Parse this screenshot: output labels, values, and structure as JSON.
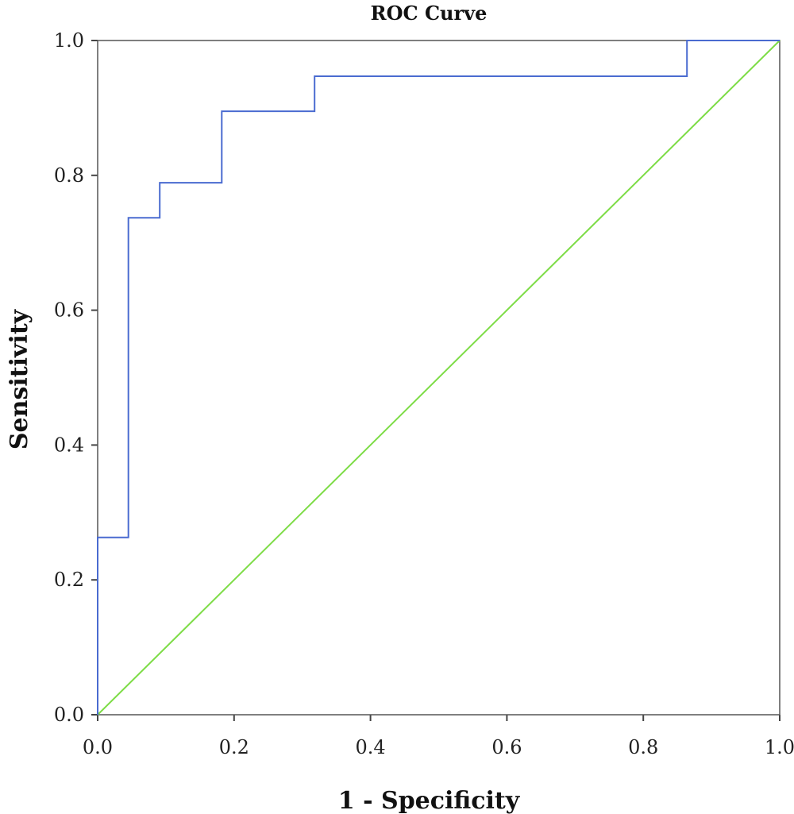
{
  "chart_data": {
    "type": "line",
    "title": "ROC Curve",
    "xlabel": "1 - Specificity",
    "ylabel": "Sensitivity",
    "xlim": [
      0.0,
      1.0
    ],
    "ylim": [
      0.0,
      1.0
    ],
    "grid": false,
    "x_ticks": [
      "0.0",
      "0.2",
      "0.4",
      "0.6",
      "0.8",
      "1.0"
    ],
    "y_ticks": [
      "0.0",
      "0.2",
      "0.4",
      "0.6",
      "0.8",
      "1.0"
    ],
    "series": [
      {
        "color": "#4a6bd0",
        "step": true,
        "x": [
          0.0,
          0.0,
          0.045,
          0.045,
          0.091,
          0.091,
          0.182,
          0.182,
          0.318,
          0.318,
          0.864,
          0.864,
          1.0
        ],
        "y": [
          0.0,
          0.263,
          0.263,
          0.737,
          0.737,
          0.789,
          0.789,
          0.895,
          0.895,
          0.947,
          0.947,
          1.0,
          1.0
        ]
      },
      {
        "color": "#7ddc46",
        "step": false,
        "x": [
          0.0,
          1.0
        ],
        "y": [
          0.0,
          1.0
        ]
      }
    ]
  }
}
